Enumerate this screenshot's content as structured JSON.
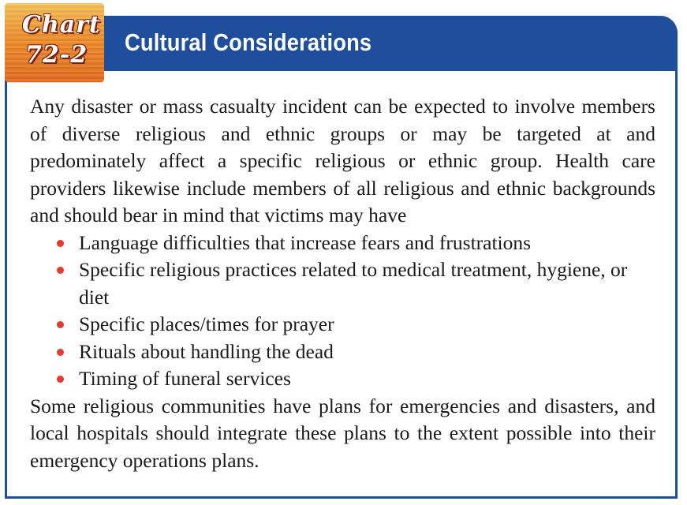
{
  "badge": {
    "word": "Chart",
    "number": "72-2",
    "colors": {
      "top": "#f4c15a",
      "bottom": "#e06a1e",
      "outline": "#7a1f0a"
    }
  },
  "header": {
    "title": "Cultural Considerations",
    "bar_color": "#1f4e9c"
  },
  "body": {
    "intro": "Any disaster or mass casualty incident can be expected to involve members of diverse religious and ethnic groups or may be targeted at and predominately affect a specific religious or ethnic group. Health care providers likewise include members of all religious and ethnic backgrounds and should bear in mind that victims may have",
    "bullets": [
      "Language difficulties that increase fears and frustrations",
      "Specific religious practices related to medical treatment, hygiene, or diet",
      "Specific places/times for prayer",
      "Rituals about handling the dead",
      "Timing of funeral services"
    ],
    "closing": "Some religious communities have plans for emergencies and disasters, and local hospitals should integrate these plans to the extent possible into their emergency operations plans.",
    "bullet_color": "#e53b2e"
  }
}
